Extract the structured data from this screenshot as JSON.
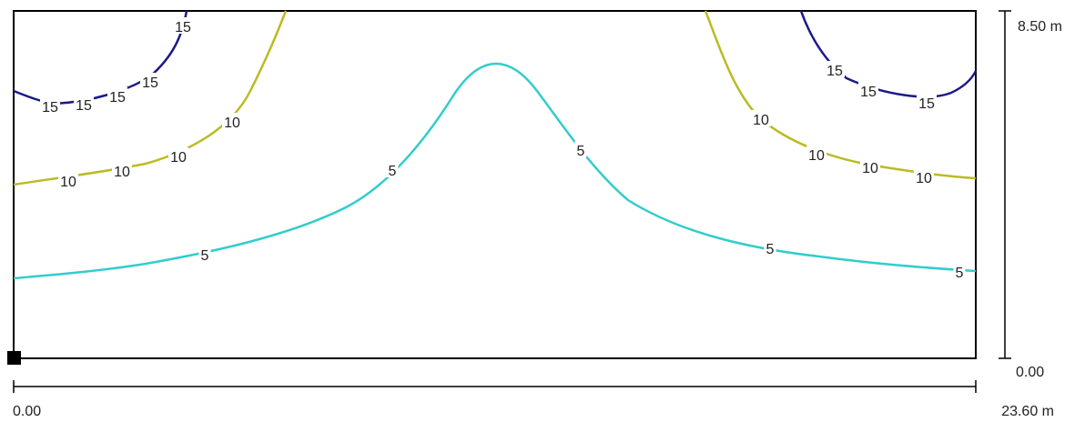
{
  "room": {
    "width_label_start": "0.00",
    "width_label_end": "23.60 m",
    "height_label_start": "0.00",
    "height_label_end": "8.50 m",
    "width": 23.6,
    "height": 8.5
  },
  "colors": {
    "frame": "#000000",
    "contour_5": "#33cccc",
    "contour_10": "#bbbb22",
    "contour_15": "#1a1a88"
  },
  "contours": [
    {
      "level": 5,
      "labels": [
        "5",
        "5",
        "5",
        "5",
        "5"
      ]
    },
    {
      "level": 10,
      "labels": [
        "10",
        "10",
        "10",
        "10",
        "10",
        "10",
        "10",
        "10"
      ]
    },
    {
      "level": 15,
      "labels": [
        "15",
        "15",
        "15",
        "15",
        "15",
        "15",
        "15",
        "15"
      ]
    }
  ]
}
